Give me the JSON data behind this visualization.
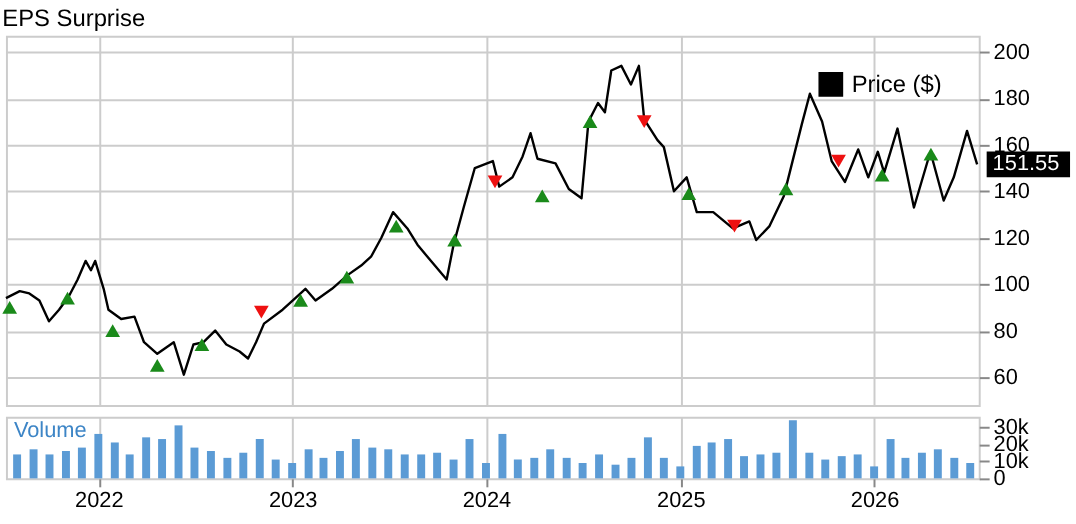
{
  "chart_data": [
    {
      "type": "line",
      "title": "EPS Surprise",
      "xlim": [
        "2021-07-11",
        "2026-07-17"
      ],
      "ylim": [
        48,
        207
      ],
      "yticks": [
        60,
        80,
        100,
        120,
        140,
        160,
        180,
        200
      ],
      "xticks": [
        "2022",
        "2023",
        "2024",
        "2025",
        "2026"
      ],
      "grid": true,
      "legend": "top right",
      "tick_labels": "y",
      "marker": "none",
      "line_style": "solid",
      "annotations": [
        {
          "text": "151.55",
          "x": "2026-07-14",
          "y": 151.55
        }
      ],
      "series": [
        {
          "name": "Price ($)",
          "color": "#000000",
          "x": [
            "2021-07-11",
            "2021-08-06",
            "2021-08-24",
            "2021-09-12",
            "2021-09-30",
            "2021-10-19",
            "2021-11-07",
            "2021-11-23",
            "2021-12-08",
            "2021-12-18",
            "2021-12-26",
            "2022-01-11",
            "2022-01-20",
            "2022-02-13",
            "2022-03-10",
            "2022-03-28",
            "2022-04-22",
            "2022-05-23",
            "2022-06-11",
            "2022-06-29",
            "2022-07-18",
            "2022-08-09",
            "2022-08-30",
            "2022-09-24",
            "2022-10-10",
            "2022-10-25",
            "2022-11-09",
            "2022-12-14",
            "2023-01-07",
            "2023-01-26",
            "2023-02-14",
            "2023-03-17",
            "2023-04-16",
            "2023-05-11",
            "2023-05-30",
            "2023-06-18",
            "2023-07-10",
            "2023-08-06",
            "2023-08-25",
            "2023-09-12",
            "2023-10-19",
            "2023-11-01",
            "2023-11-20",
            "2023-12-11",
            "2024-01-14",
            "2024-01-26",
            "2024-02-20",
            "2024-03-10",
            "2024-03-25",
            "2024-04-07",
            "2024-05-11",
            "2024-06-05",
            "2024-06-29",
            "2024-07-12",
            "2024-07-30",
            "2024-08-12",
            "2024-08-24",
            "2024-09-12",
            "2024-09-30",
            "2024-10-15",
            "2024-10-25",
            "2024-11-19",
            "2024-12-01",
            "2024-12-20",
            "2025-01-13",
            "2025-02-01",
            "2025-03-04",
            "2025-04-10",
            "2025-05-11",
            "2025-05-24",
            "2025-06-18",
            "2025-07-15",
            "2025-08-18",
            "2025-09-02",
            "2025-09-25",
            "2025-10-13",
            "2025-11-07",
            "2025-12-02",
            "2025-12-21",
            "2026-01-08",
            "2026-01-20",
            "2026-02-14",
            "2026-03-17",
            "2026-04-17",
            "2026-05-12",
            "2026-05-31",
            "2026-06-25",
            "2026-07-14"
          ],
          "values": [
            94,
            97,
            96,
            93,
            84,
            89,
            95,
            102,
            110,
            106,
            110,
            98,
            89,
            85,
            86,
            75,
            70,
            75,
            61,
            74,
            75,
            80,
            74,
            71,
            68,
            75,
            83,
            89,
            94,
            98,
            93,
            98,
            104,
            108,
            112,
            120,
            131,
            124,
            117,
            112,
            102,
            117,
            133,
            150,
            153,
            142,
            146,
            155,
            165,
            154,
            152,
            141,
            137,
            170,
            178,
            174,
            192,
            194,
            186,
            194,
            171,
            162,
            159,
            140,
            146,
            131,
            131,
            124,
            127,
            119,
            125,
            138,
            169,
            182,
            170,
            153,
            144,
            158,
            146,
            157,
            148,
            167,
            133,
            157,
            136,
            146,
            166,
            151.55
          ]
        },
        {
          "type": "scatter",
          "color": "#1a8a1a",
          "marker": "triangle",
          "x": [
            "2021-07-18",
            "2021-11-04",
            "2022-01-28",
            "2022-04-22",
            "2022-07-15",
            "2023-01-17",
            "2023-04-14",
            "2023-07-16",
            "2023-11-03",
            "2024-04-16",
            "2024-07-15",
            "2025-01-17",
            "2025-07-19",
            "2026-01-16",
            "2026-04-18"
          ],
          "values": [
            90,
            94,
            80,
            65,
            74,
            93,
            103,
            125,
            119,
            138,
            170,
            139,
            141,
            147,
            156
          ]
        },
        {
          "type": "scatter",
          "color": "#ee1111",
          "marker": "triangle-down",
          "x": [
            "2022-11-04",
            "2024-01-18",
            "2024-10-25",
            "2025-04-13",
            "2025-10-26"
          ],
          "values": [
            88,
            144,
            170,
            125,
            153
          ]
        }
      ]
    },
    {
      "type": "bar",
      "ylabel": "Volume",
      "xlim": [
        "2021-07-11",
        "2026-07-17"
      ],
      "ylim": [
        0,
        36000
      ],
      "yticks": [
        0,
        {
          "value": 10000,
          "label": "10k"
        },
        {
          "value": 20000,
          "label": "20k"
        },
        {
          "value": 30000,
          "label": "30k"
        }
      ],
      "xticks": [
        "2022",
        "2023",
        "2024",
        "2025",
        "2026"
      ],
      "grid": "x",
      "x": [
        "2021-08",
        "2021-09",
        "2021-10",
        "2021-11",
        "2021-12",
        "2022-01",
        "2022-02",
        "2022-03",
        "2022-04",
        "2022-05",
        "2022-06",
        "2022-07",
        "2022-08",
        "2022-09",
        "2022-10",
        "2022-11",
        "2022-12",
        "2023-01",
        "2023-02",
        "2023-03",
        "2023-04",
        "2023-05",
        "2023-06",
        "2023-07",
        "2023-08",
        "2023-09",
        "2023-10",
        "2023-11",
        "2023-12",
        "2024-01",
        "2024-02",
        "2024-03",
        "2024-04",
        "2024-05",
        "2024-06",
        "2024-07",
        "2024-08",
        "2024-09",
        "2024-10",
        "2024-11",
        "2024-12",
        "2025-01",
        "2025-02",
        "2025-03",
        "2025-04",
        "2025-05",
        "2025-06",
        "2025-07",
        "2025-08",
        "2025-09",
        "2025-10",
        "2025-11",
        "2025-12",
        "2026-01",
        "2026-02",
        "2026-03",
        "2026-04",
        "2026-05",
        "2026-06",
        "2026-07"
      ],
      "series": [
        {
          "color": "#5b9bd5",
          "values": [
            14000,
            17000,
            14000,
            16000,
            18000,
            26000,
            21000,
            14000,
            24000,
            23000,
            31000,
            18000,
            16000,
            12000,
            15000,
            23000,
            11000,
            9000,
            17000,
            12000,
            16000,
            23000,
            18000,
            17000,
            14000,
            14000,
            15000,
            11000,
            23000,
            9000,
            26000,
            11000,
            12000,
            17000,
            12000,
            9000,
            14000,
            8000,
            12000,
            24000,
            12000,
            7000,
            19000,
            21000,
            23000,
            13000,
            14000,
            15000,
            34000,
            15000,
            11000,
            13000,
            14000,
            7000,
            23000,
            12000,
            15000,
            17000,
            12000,
            9000
          ]
        }
      ]
    }
  ]
}
